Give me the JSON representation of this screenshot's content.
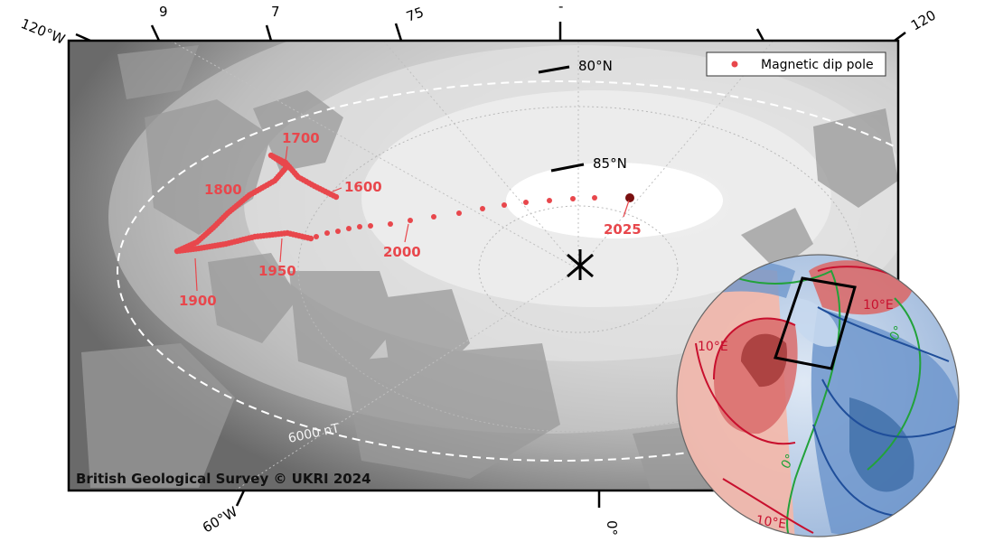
{
  "map": {
    "legend": {
      "dip_pole_label": "Magnetic dip pole"
    },
    "latitudes": {
      "lat80": "80°N",
      "lat85": "85°N"
    },
    "longitudes": {
      "w120": "120°W",
      "w90_partial": "9",
      "w75_partial": "7",
      "w75": "75",
      "top_partial": "-",
      "e120_partial": "120",
      "w60": "60°W",
      "zero": "0°"
    },
    "contour_label": "6000 nT",
    "credit": "British Geological Survey © UKRI 2024",
    "years": {
      "y1600": "1600",
      "y1700": "1700",
      "y1800": "1800",
      "y1900": "1900",
      "y1950": "1950",
      "y2000": "2000",
      "y2025": "2025"
    },
    "inset": {
      "east_label_top": "10°E",
      "east_label_left": "10°E",
      "east_label_bottom": "10°E",
      "zero_label_a": "0°",
      "zero_label_b": "0°"
    },
    "colors": {
      "track": "#e8474c",
      "pole_2025": "#7a1010",
      "warm": "#c8102e",
      "cool": "#1f4e9a",
      "agonic": "#22a23a"
    }
  }
}
